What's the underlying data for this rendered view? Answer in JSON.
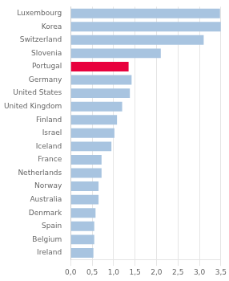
{
  "chart_data": {
    "type": "bar",
    "orientation": "horizontal",
    "categories": [
      "Luxembourg",
      "Korea",
      "Switzerland",
      "Slovenia",
      "Portugal",
      "Germany",
      "United States",
      "United Kingdom",
      "Finland",
      "Israel",
      "Iceland",
      "France",
      "Netherlands",
      "Norway",
      "Australia",
      "Denmark",
      "Spain",
      "Belgium",
      "Ireland"
    ],
    "values": [
      3.48,
      3.5,
      3.1,
      2.1,
      1.35,
      1.42,
      1.38,
      1.2,
      1.08,
      1.02,
      0.95,
      0.72,
      0.72,
      0.65,
      0.65,
      0.58,
      0.55,
      0.55,
      0.53
    ],
    "colors": [
      "#a8c4e0",
      "#a8c4e0",
      "#a8c4e0",
      "#a8c4e0",
      "#e8003d",
      "#a8c4e0",
      "#a8c4e0",
      "#a8c4e0",
      "#a8c4e0",
      "#a8c4e0",
      "#a8c4e0",
      "#a8c4e0",
      "#a8c4e0",
      "#a8c4e0",
      "#a8c4e0",
      "#a8c4e0",
      "#a8c4e0",
      "#a8c4e0",
      "#a8c4e0"
    ],
    "xlim": [
      0,
      3.5
    ],
    "xticks": [
      {
        "value": 0.0,
        "label": "0,0"
      },
      {
        "value": 0.5,
        "label": "0,5"
      },
      {
        "value": 1.0,
        "label": "1,0"
      },
      {
        "value": 1.5,
        "label": "1,5"
      },
      {
        "value": 2.0,
        "label": "2,0"
      },
      {
        "value": 2.5,
        "label": "2,5"
      },
      {
        "value": 3.0,
        "label": "3,0"
      },
      {
        "value": 3.5,
        "label": "3,5"
      }
    ],
    "grid": true
  }
}
